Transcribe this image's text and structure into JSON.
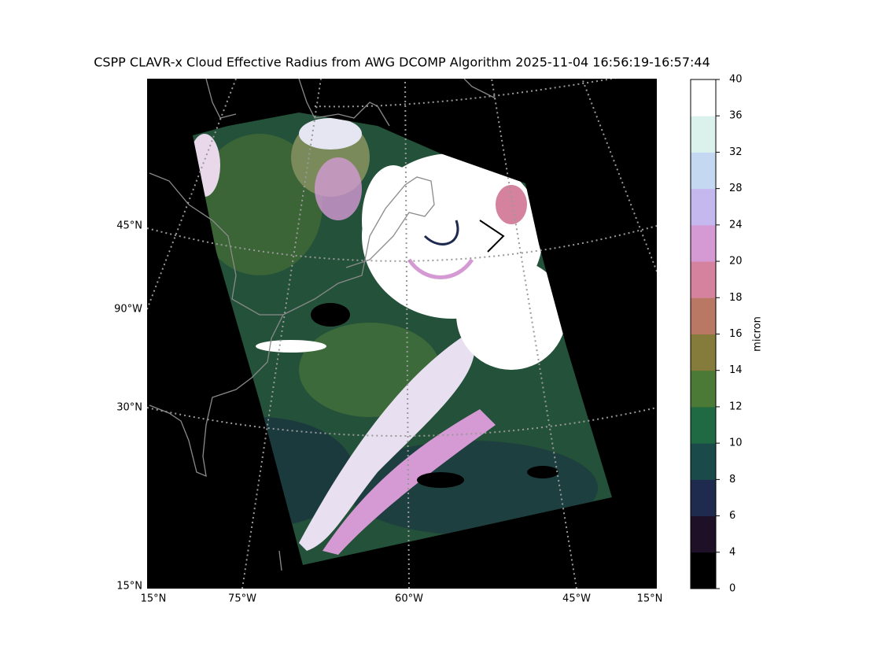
{
  "map": {
    "title": "CSPP CLAVR-x Cloud Effective Radius from AWG DCOMP Algorithm 2025-11-04 16:56:19-16:57:44",
    "lat_lon_labels": {
      "left": [
        "45°N",
        "90°W",
        "30°N",
        "15°N"
      ],
      "bottom": [
        "15°N",
        "75°W",
        "60°W",
        "45°W",
        "15°N"
      ]
    },
    "colorbar": {
      "label": "micron",
      "boundaries": [
        0,
        4,
        6,
        8,
        10,
        12,
        14,
        16,
        18,
        20,
        24,
        28,
        32,
        36,
        40
      ],
      "colors": [
        "#000000",
        "#1d1027",
        "#1e2a4e",
        "#1b4a4b",
        "#206a43",
        "#4a7a35",
        "#857b3a",
        "#b97863",
        "#d4829d",
        "#d59ad4",
        "#c4b8ef",
        "#c5d8f2",
        "#daf1ec",
        "#ffffff"
      ]
    }
  }
}
